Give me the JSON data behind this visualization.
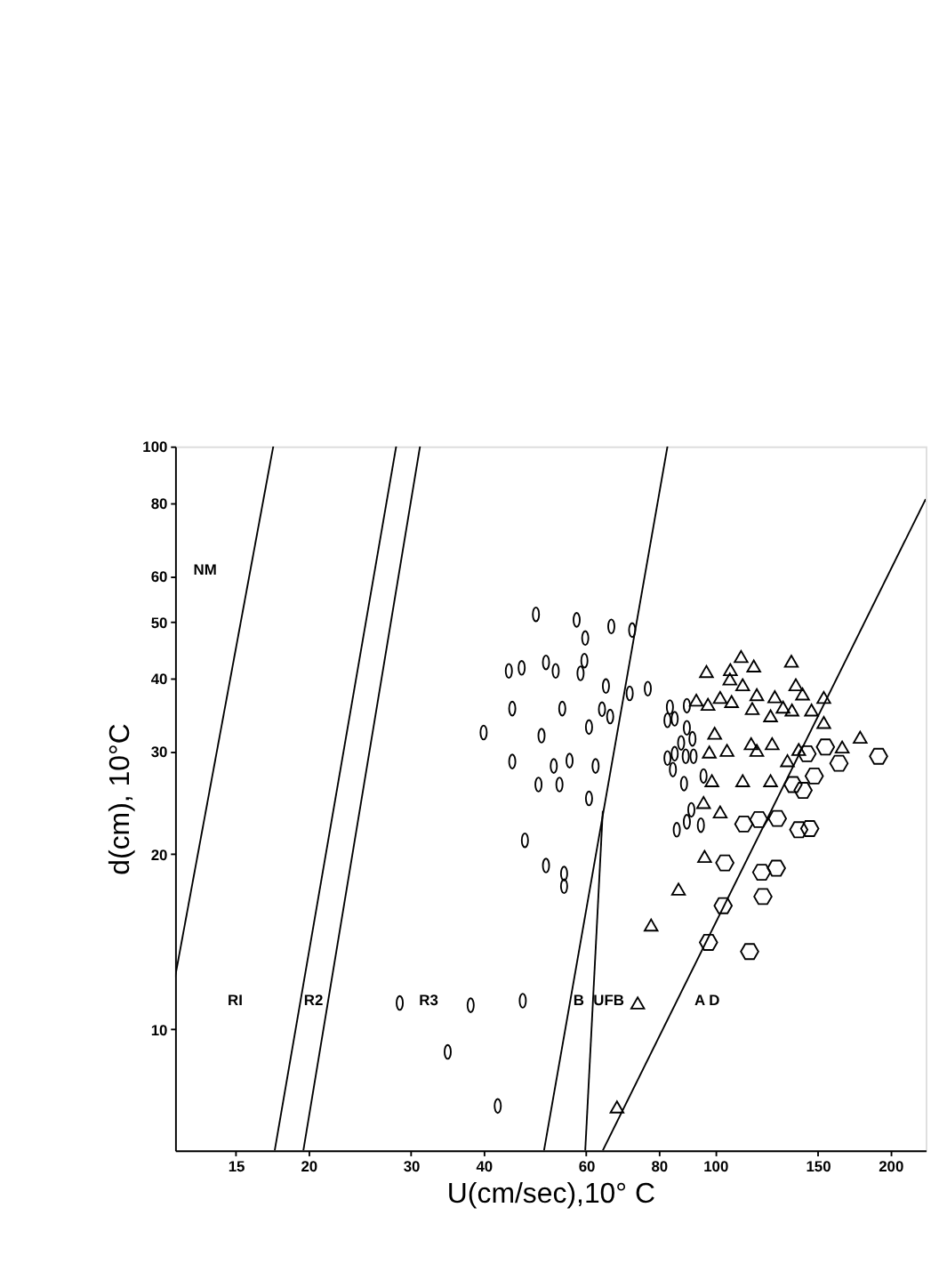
{
  "chart_data": {
    "type": "scatter",
    "xlabel": "U(cm/sec),10° C",
    "ylabel": "d(cm), 10°C",
    "log": "xy",
    "grid": false,
    "xlim": [
      11.8,
      230
    ],
    "ylim": [
      6.2,
      100
    ],
    "xticks": [
      15,
      20,
      30,
      40,
      60,
      80,
      100,
      150,
      200
    ],
    "yticks": [
      10,
      20,
      30,
      40,
      50,
      60,
      80,
      100
    ],
    "annotations": [
      "NM",
      "RI",
      "R2",
      "R3",
      "B",
      "UFB",
      "A D"
    ],
    "series": [
      {
        "type": "scatter",
        "marker": "circle",
        "color": "#000000",
        "x": [
          49.2,
          44.2,
          46.5,
          51.2,
          53.2,
          44.8,
          40.0,
          50.3,
          44.8,
          52.8,
          49.7,
          54.0,
          57.8,
          59.8,
          66.3,
          72.0,
          59.6,
          58.7,
          64.9,
          71.3,
          76.6,
          54.6,
          63.9,
          66.0,
          60.7,
          56.2,
          62.3,
          60.7,
          47.1,
          51.2,
          55.0,
          55.0,
          28.7,
          38.0,
          46.7,
          34.7,
          42.3,
          83.6,
          89.4,
          82.8,
          85.2,
          89.4,
          87.4,
          91.4,
          82.8,
          85.2,
          89.0,
          91.8,
          84.6,
          88.4,
          95.5,
          91.0,
          89.4,
          94.5,
          85.9
        ],
        "values": [
          51.5,
          41.2,
          41.7,
          42.6,
          41.2,
          35.5,
          32.3,
          31.9,
          28.8,
          28.3,
          26.3,
          26.3,
          50.4,
          46.9,
          49.1,
          48.4,
          42.9,
          40.8,
          38.8,
          37.7,
          38.4,
          35.5,
          35.4,
          34.4,
          33.0,
          28.9,
          28.3,
          24.9,
          21.1,
          19.1,
          18.5,
          17.6,
          11.1,
          11.0,
          11.2,
          9.15,
          7.39,
          35.7,
          35.9,
          33.9,
          34.1,
          32.9,
          31.0,
          31.5,
          29.2,
          29.7,
          29.4,
          29.4,
          27.9,
          26.4,
          27.2,
          23.8,
          22.7,
          22.4,
          22.0
        ]
      },
      {
        "type": "scatter",
        "marker": "triangle",
        "color": "#000000",
        "x": [
          110.8,
          96.6,
          106.2,
          116.5,
          135.2,
          106.0,
          111.5,
          137.6,
          92.8,
          97.2,
          102.0,
          106.7,
          117.9,
          126.6,
          141.3,
          153.7,
          115.8,
          124.5,
          130.8,
          135.5,
          146.4,
          153.7,
          99.8,
          115.3,
          117.9,
          125.3,
          97.7,
          104.8,
          139.2,
          133.1,
          165.3,
          177.5,
          98.7,
          111.5,
          124.5,
          95.5,
          102.0,
          95.9,
          86.5,
          77.6,
          73.6,
          67.8
        ],
        "values": [
          43.6,
          41.1,
          41.4,
          42.0,
          42.8,
          39.9,
          39.0,
          39.0,
          36.7,
          36.1,
          37.1,
          36.5,
          37.5,
          37.2,
          37.6,
          37.1,
          35.5,
          34.5,
          35.7,
          35.3,
          35.3,
          33.6,
          32.2,
          30.9,
          30.1,
          30.9,
          29.9,
          30.1,
          30.2,
          28.9,
          30.5,
          31.7,
          26.7,
          26.7,
          26.7,
          24.5,
          23.6,
          19.8,
          17.4,
          15.1,
          11.1,
          7.36
        ]
      },
      {
        "type": "scatter",
        "color": "#000000",
        "x": [
          143.8,
          154.7,
          163.2,
          190.9,
          136.1,
          141.6,
          148.0,
          112.0,
          118.9,
          127.9,
          139.2,
          145.4,
          103.9,
          120.2,
          127.4,
          120.8,
          103.2,
          97.4,
          114.6
        ],
        "values": [
          29.7,
          30.5,
          28.6,
          29.4,
          26.3,
          25.7,
          27.2,
          22.5,
          22.9,
          23.0,
          22.0,
          22.1,
          19.3,
          18.6,
          18.9,
          16.9,
          16.3,
          14.1,
          13.6
        ]
      },
      {
        "type": "line",
        "marker": "none",
        "color": "#000000",
        "x": [
          11.8,
          17.4
        ],
        "values": [
          12.3,
          100
        ]
      },
      {
        "type": "line",
        "marker": "none",
        "color": "#000000",
        "x": [
          17.5,
          28.3
        ],
        "values": [
          6.2,
          100
        ]
      },
      {
        "type": "line",
        "marker": "none",
        "color": "#000000",
        "x": [
          19.6,
          31.1
        ],
        "values": [
          6.2,
          100
        ]
      },
      {
        "type": "line",
        "marker": "none",
        "color": "#000000",
        "x": [
          50.8,
          82.8
        ],
        "values": [
          6.2,
          100
        ]
      },
      {
        "type": "line",
        "marker": "none",
        "color": "#000000",
        "x": [
          59.8,
          64.1
        ],
        "values": [
          6.2,
          23.7
        ]
      },
      {
        "type": "line",
        "marker": "none",
        "color": "#000000",
        "x": [
          64.1,
          230
        ],
        "values": [
          6.2,
          81.2
        ]
      }
    ]
  }
}
